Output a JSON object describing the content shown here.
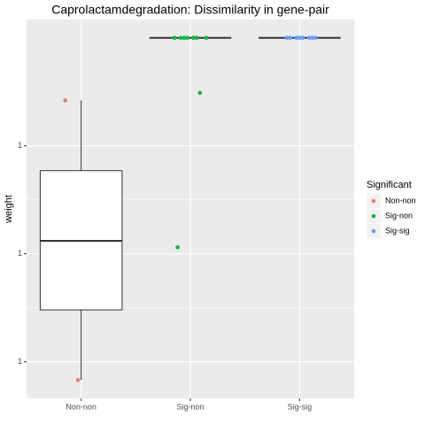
{
  "chart_data": {
    "type": "boxplot",
    "title": "Caprolactamdegradation: Dissimilarity in gene-pair",
    "y_label": "weight",
    "categories": [
      "Non-non",
      "Sig-non",
      "Sig-sig"
    ],
    "ylim": [
      0.9866,
      1.0217
    ],
    "yticks": [
      {
        "value": 0.99,
        "label": "1"
      },
      {
        "value": 1.0,
        "label": "1"
      },
      {
        "value": 1.01,
        "label": "1"
      }
    ],
    "grid": true,
    "box": {
      "min": [
        0.9883,
        1.02,
        1.02
      ],
      "q1": [
        0.9948,
        1.02,
        1.02
      ],
      "median": [
        1.0012,
        1.02,
        1.02
      ],
      "q3": [
        1.0077,
        1.02,
        1.02
      ],
      "max": [
        1.0142,
        1.02,
        1.02
      ]
    },
    "legend_title": "Significant",
    "legend_position": "right",
    "series": [
      {
        "name": "Non-non",
        "color": "#F8766D",
        "values": [
          1.0142,
          0.9883
        ]
      },
      {
        "name": "Sig-non",
        "color": "#00BA38",
        "values": [
          1.02,
          1.02,
          1.02,
          1.02,
          1.02,
          1.02,
          1.02,
          1.0149,
          1.0006
        ]
      },
      {
        "name": "Sig-sig",
        "color": "#619CFF",
        "values": [
          1.02,
          1.02,
          1.02,
          1.02,
          1.02,
          1.02,
          1.02,
          1.02
        ]
      }
    ]
  }
}
